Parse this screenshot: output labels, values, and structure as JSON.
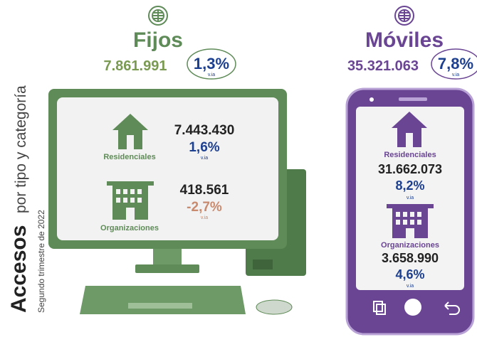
{
  "sidebar": {
    "title": "Accesos",
    "subtitle": "por tipo y categoría",
    "period": "Segundo trimestre de 2022"
  },
  "sections": [
    {
      "title": "Fijos",
      "total": "7.861.991",
      "change": "1,3%",
      "change_label": "v.ia",
      "categories": [
        {
          "label": "Residenciales",
          "value": "7.443.430",
          "change": "1,6%",
          "change_label": "v.ia"
        },
        {
          "label": "Organizaciones",
          "value": "418.561",
          "change": "-2,7%",
          "change_label": "v.ia"
        }
      ]
    },
    {
      "title": "Móviles",
      "total": "35.321.063",
      "change": "7,8%",
      "change_label": "v.ia",
      "categories": [
        {
          "label": "Residenciales",
          "value": "31.662.073",
          "change": "8,2%",
          "change_label": "v.ia"
        },
        {
          "label": "Organizaciones",
          "value": "3.658.990",
          "change": "4,6%",
          "change_label": "v.ia"
        }
      ]
    }
  ]
}
